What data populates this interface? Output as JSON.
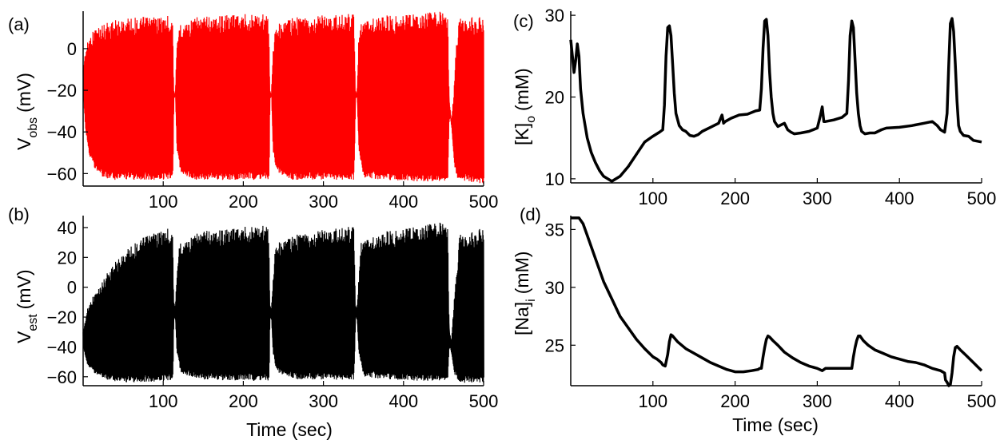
{
  "figure": {
    "panels": [
      {
        "label": "(a)",
        "ylabel_main": "V",
        "ylabel_sub": "obs",
        "ylabel_unit": "(mV)",
        "xlabel": ""
      },
      {
        "label": "(b)",
        "ylabel_main": "V",
        "ylabel_sub": "est",
        "ylabel_unit": "(mV)",
        "xlabel": "Time (sec)"
      },
      {
        "label": "(c)",
        "ylabel_pre": "[K]",
        "ylabel_sub": "o",
        "ylabel_unit": "(mM)",
        "xlabel": ""
      },
      {
        "label": "(d)",
        "ylabel_pre": "[Na]",
        "ylabel_sub": "i",
        "ylabel_unit": "(mM)",
        "xlabel": "Time (sec)"
      }
    ]
  },
  "chart_data": [
    {
      "id": "a",
      "type": "line",
      "title": "",
      "xlabel": "",
      "ylabel": "V obs (mV)",
      "xlim": [
        0,
        500
      ],
      "ylim": [
        -66,
        18
      ],
      "xticks": [
        100,
        200,
        300,
        400,
        500
      ],
      "yticks": [
        -60,
        -40,
        -20,
        0
      ],
      "color": "#ff0000",
      "render": "oscillation envelope",
      "series": [
        {
          "upper": [
            [
              0,
              -10
            ],
            [
              3,
              0
            ],
            [
              8,
              6
            ],
            [
              15,
              10
            ],
            [
              30,
              13
            ],
            [
              60,
              15
            ],
            [
              108,
              16
            ],
            [
              112,
              16
            ],
            [
              113,
              -20
            ],
            [
              115,
              -22
            ],
            [
              117,
              0
            ],
            [
              120,
              12
            ],
            [
              140,
              15
            ],
            [
              180,
              17
            ],
            [
              228,
              17
            ],
            [
              232,
              15
            ],
            [
              233,
              -20
            ],
            [
              235,
              -22
            ],
            [
              237,
              0
            ],
            [
              240,
              12
            ],
            [
              260,
              15
            ],
            [
              300,
              16
            ],
            [
              338,
              17
            ],
            [
              340,
              -20
            ],
            [
              342,
              -22
            ],
            [
              344,
              5
            ],
            [
              347,
              12
            ],
            [
              370,
              16
            ],
            [
              420,
              17
            ],
            [
              455,
              18
            ],
            [
              457,
              -25
            ],
            [
              460,
              -35
            ],
            [
              463,
              -20
            ],
            [
              466,
              5
            ],
            [
              469,
              14
            ],
            [
              480,
              16
            ],
            [
              500,
              15
            ]
          ],
          "lower": [
            [
              0,
              -22
            ],
            [
              3,
              -40
            ],
            [
              8,
              -52
            ],
            [
              15,
              -58
            ],
            [
              25,
              -62
            ],
            [
              40,
              -63
            ],
            [
              108,
              -63
            ],
            [
              112,
              -62
            ],
            [
              113,
              -24
            ],
            [
              115,
              -23
            ],
            [
              117,
              -50
            ],
            [
              122,
              -60
            ],
            [
              140,
              -63
            ],
            [
              232,
              -63
            ],
            [
              233,
              -24
            ],
            [
              235,
              -23
            ],
            [
              237,
              -50
            ],
            [
              242,
              -60
            ],
            [
              260,
              -63
            ],
            [
              338,
              -63
            ],
            [
              340,
              -24
            ],
            [
              342,
              -23
            ],
            [
              344,
              -50
            ],
            [
              350,
              -62
            ],
            [
              400,
              -64
            ],
            [
              455,
              -64
            ],
            [
              457,
              -30
            ],
            [
              460,
              -38
            ],
            [
              463,
              -55
            ],
            [
              466,
              -62
            ],
            [
              480,
              -64
            ],
            [
              500,
              -65
            ]
          ]
        }
      ]
    },
    {
      "id": "b",
      "type": "line",
      "title": "",
      "xlabel": "Time (sec)",
      "ylabel": "V est (mV)",
      "xlim": [
        0,
        500
      ],
      "ylim": [
        -66,
        48
      ],
      "xticks": [
        100,
        200,
        300,
        400,
        500
      ],
      "yticks": [
        -60,
        -40,
        -20,
        0,
        20,
        40
      ],
      "color": "#000000",
      "render": "oscillation envelope",
      "series": [
        {
          "upper": [
            [
              0,
              -30
            ],
            [
              5,
              -15
            ],
            [
              10,
              -8
            ],
            [
              20,
              0
            ],
            [
              30,
              10
            ],
            [
              45,
              20
            ],
            [
              60,
              28
            ],
            [
              80,
              35
            ],
            [
              100,
              39
            ],
            [
              112,
              40
            ],
            [
              113,
              -10
            ],
            [
              115,
              -12
            ],
            [
              117,
              5
            ],
            [
              120,
              30
            ],
            [
              150,
              38
            ],
            [
              200,
              41
            ],
            [
              228,
              42
            ],
            [
              232,
              40
            ],
            [
              233,
              -12
            ],
            [
              235,
              -14
            ],
            [
              237,
              5
            ],
            [
              240,
              30
            ],
            [
              270,
              36
            ],
            [
              320,
              40
            ],
            [
              338,
              41
            ],
            [
              340,
              -12
            ],
            [
              342,
              -14
            ],
            [
              344,
              5
            ],
            [
              347,
              30
            ],
            [
              380,
              38
            ],
            [
              430,
              42
            ],
            [
              455,
              44
            ],
            [
              457,
              -30
            ],
            [
              460,
              -35
            ],
            [
              463,
              -10
            ],
            [
              466,
              10
            ],
            [
              470,
              35
            ],
            [
              500,
              40
            ]
          ],
          "lower": [
            [
              0,
              -40
            ],
            [
              5,
              -52
            ],
            [
              15,
              -58
            ],
            [
              30,
              -62
            ],
            [
              50,
              -64
            ],
            [
              100,
              -63
            ],
            [
              112,
              -63
            ],
            [
              113,
              -20
            ],
            [
              115,
              -22
            ],
            [
              117,
              -45
            ],
            [
              122,
              -58
            ],
            [
              150,
              -62
            ],
            [
              232,
              -63
            ],
            [
              233,
              -20
            ],
            [
              235,
              -22
            ],
            [
              237,
              -45
            ],
            [
              242,
              -58
            ],
            [
              270,
              -62
            ],
            [
              338,
              -62
            ],
            [
              340,
              -20
            ],
            [
              342,
              -22
            ],
            [
              344,
              -45
            ],
            [
              350,
              -60
            ],
            [
              400,
              -63
            ],
            [
              455,
              -63
            ],
            [
              457,
              -38
            ],
            [
              460,
              -45
            ],
            [
              463,
              -58
            ],
            [
              470,
              -64
            ],
            [
              500,
              -64
            ]
          ]
        }
      ]
    },
    {
      "id": "c",
      "type": "line",
      "title": "",
      "xlabel": "",
      "ylabel": "[K]o (mM)",
      "xlim": [
        0,
        500
      ],
      "ylim": [
        9.5,
        30.5
      ],
      "xticks": [
        100,
        200,
        300,
        400,
        500
      ],
      "yticks": [
        10,
        20,
        30
      ],
      "color": "#000000",
      "render": "line",
      "series": [
        {
          "x": [
            0,
            2,
            4,
            6,
            8,
            10,
            12,
            15,
            20,
            25,
            30,
            35,
            40,
            45,
            50,
            55,
            60,
            70,
            80,
            90,
            100,
            108,
            112,
            114,
            116,
            118,
            120,
            122,
            124,
            126,
            128,
            132,
            136,
            140,
            145,
            150,
            155,
            160,
            170,
            180,
            184,
            186,
            188,
            195,
            205,
            215,
            225,
            230,
            232,
            234,
            236,
            238,
            240,
            242,
            244,
            246,
            248,
            252,
            256,
            260,
            264,
            268,
            272,
            280,
            290,
            300,
            304,
            306,
            308,
            310,
            320,
            330,
            336,
            338,
            340,
            342,
            344,
            346,
            348,
            350,
            352,
            354,
            358,
            364,
            370,
            378,
            384,
            400,
            415,
            430,
            440,
            446,
            450,
            455,
            458,
            460,
            462,
            464,
            466,
            468,
            470,
            472,
            474,
            478,
            484,
            490,
            500
          ],
          "y": [
            27.0,
            25.0,
            23.0,
            24.5,
            26.5,
            25.0,
            21.0,
            18.0,
            15.0,
            13.2,
            12.0,
            11.0,
            10.3,
            10.0,
            9.7,
            10.0,
            10.3,
            11.5,
            13.0,
            14.5,
            15.2,
            15.7,
            16.0,
            19.0,
            25.0,
            28.5,
            28.7,
            27.5,
            24.0,
            20.5,
            18.0,
            16.5,
            16.0,
            15.8,
            15.3,
            15.2,
            15.4,
            15.8,
            16.3,
            16.8,
            17.8,
            16.8,
            17.0,
            17.4,
            17.8,
            17.9,
            18.3,
            18.4,
            21.0,
            26.0,
            29.3,
            29.5,
            27.5,
            23.0,
            20.0,
            18.0,
            17.0,
            16.4,
            16.6,
            16.8,
            16.0,
            15.7,
            15.5,
            15.6,
            15.8,
            16.2,
            17.8,
            18.8,
            17.0,
            17.0,
            17.2,
            17.5,
            18.0,
            22.0,
            27.5,
            29.3,
            28.5,
            24.5,
            20.5,
            18.0,
            16.5,
            15.8,
            15.5,
            15.6,
            15.6,
            16.0,
            16.2,
            16.3,
            16.5,
            16.8,
            17.0,
            16.5,
            16.0,
            15.7,
            18.0,
            24.0,
            29.0,
            29.6,
            28.0,
            24.0,
            19.5,
            16.5,
            15.8,
            15.3,
            15.2,
            14.7,
            14.5
          ]
        }
      ]
    },
    {
      "id": "d",
      "type": "line",
      "title": "",
      "xlabel": "Time (sec)",
      "ylabel": "[Na]i (mM)",
      "xlim": [
        0,
        500
      ],
      "ylim": [
        21.5,
        36.2
      ],
      "xticks": [
        100,
        200,
        300,
        400,
        500
      ],
      "yticks": [
        25,
        30,
        35
      ],
      "color": "#000000",
      "render": "line",
      "series": [
        {
          "x": [
            0,
            5,
            10,
            15,
            20,
            30,
            40,
            50,
            60,
            70,
            80,
            90,
            100,
            105,
            110,
            112,
            115,
            118,
            120,
            122,
            124,
            130,
            140,
            150,
            160,
            170,
            180,
            190,
            200,
            210,
            220,
            228,
            230,
            232,
            234,
            236,
            238,
            240,
            242,
            246,
            252,
            260,
            270,
            280,
            290,
            300,
            306,
            310,
            330,
            340,
            342,
            344,
            346,
            348,
            350,
            352,
            356,
            362,
            370,
            380,
            390,
            400,
            410,
            420,
            430,
            440,
            450,
            455,
            456,
            458,
            460,
            462,
            464,
            466,
            468,
            470,
            474,
            480,
            490,
            500
          ],
          "y": [
            36.0,
            36.0,
            36.0,
            35.5,
            34.5,
            32.5,
            30.5,
            29.0,
            27.5,
            26.5,
            25.5,
            24.7,
            24.0,
            23.8,
            23.5,
            23.3,
            23.2,
            24.2,
            25.3,
            25.9,
            25.8,
            25.3,
            24.7,
            24.3,
            23.9,
            23.5,
            23.2,
            22.9,
            22.7,
            22.7,
            22.8,
            22.9,
            23.0,
            23.0,
            24.0,
            24.8,
            25.5,
            25.8,
            25.7,
            25.4,
            25.0,
            24.4,
            23.9,
            23.5,
            23.2,
            23.0,
            22.8,
            23.0,
            23.0,
            23.0,
            23.0,
            24.0,
            24.8,
            25.4,
            25.8,
            25.8,
            25.4,
            25.0,
            24.6,
            24.3,
            24.0,
            23.8,
            23.6,
            23.5,
            23.3,
            23.0,
            22.8,
            22.6,
            22.0,
            21.8,
            21.5,
            21.6,
            22.6,
            24.0,
            24.8,
            24.9,
            24.6,
            24.2,
            23.5,
            22.8
          ]
        }
      ]
    }
  ]
}
